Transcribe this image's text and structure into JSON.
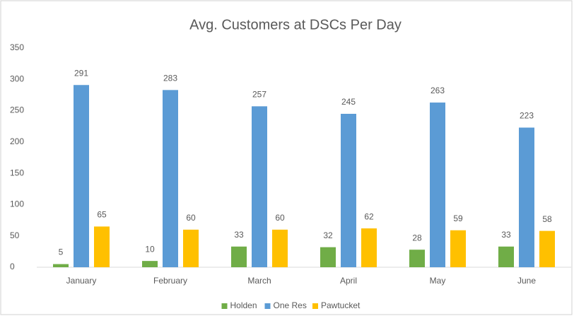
{
  "chart_data": {
    "type": "bar",
    "title": "Avg. Customers at DSCs Per Day",
    "categories": [
      "January",
      "February",
      "March",
      "April",
      "May",
      "June"
    ],
    "series": [
      {
        "name": "Holden",
        "color": "#70ad47",
        "values": [
          5,
          10,
          33,
          32,
          28,
          33
        ]
      },
      {
        "name": "One Res",
        "color": "#5b9bd5",
        "values": [
          291,
          283,
          257,
          245,
          263,
          223
        ]
      },
      {
        "name": "Pawtucket",
        "color": "#ffc000",
        "values": [
          65,
          60,
          60,
          62,
          59,
          58
        ]
      }
    ],
    "ylim": [
      0,
      350
    ],
    "yticks": [
      0,
      50,
      100,
      150,
      200,
      250,
      300,
      350
    ],
    "grid": false,
    "legend": "bottom"
  }
}
